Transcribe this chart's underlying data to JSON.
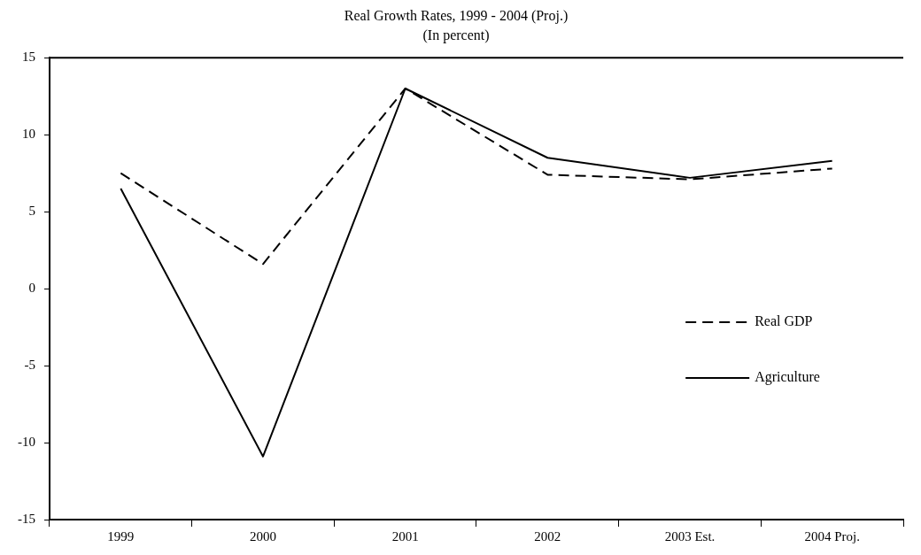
{
  "chart_data": {
    "type": "line",
    "title": "Real Growth Rates, 1999 - 2004 (Proj.)",
    "subtitle": "(In percent)",
    "categories": [
      "1999",
      "2000",
      "2001",
      "2002",
      "2003 Est.",
      "2004 Proj."
    ],
    "series": [
      {
        "name": "Real GDP",
        "color": "#000000",
        "line_style": "dashed",
        "values": [
          7.5,
          1.6,
          13.0,
          7.4,
          7.1,
          7.8
        ]
      },
      {
        "name": "Agriculture",
        "color": "#000000",
        "line_style": "solid",
        "values": [
          6.5,
          -10.9,
          13.0,
          8.5,
          7.2,
          8.3
        ]
      }
    ],
    "ylim": [
      -15,
      15
    ],
    "yticks": [
      -15,
      -10,
      -5,
      0,
      5,
      10,
      15
    ],
    "grid": false,
    "legend": "right",
    "marker": "none"
  }
}
